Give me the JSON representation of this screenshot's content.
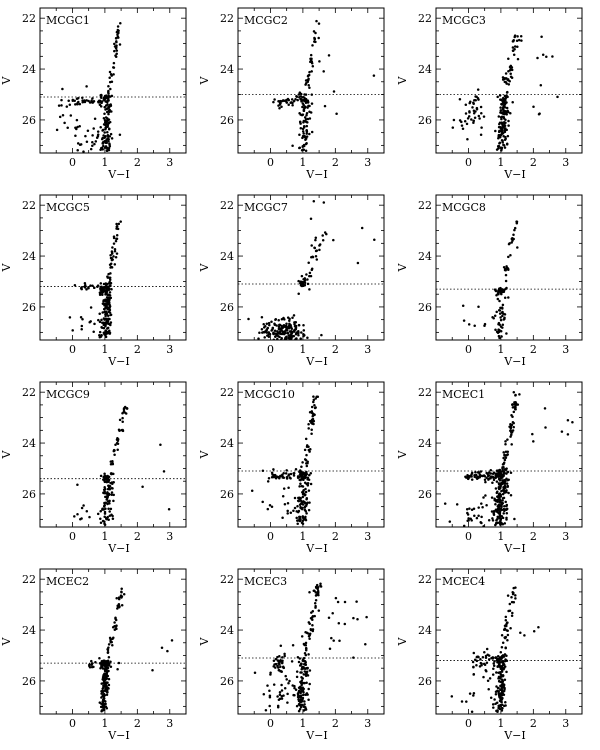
{
  "figure": {
    "layout": "4x3 grid of colour-magnitude diagrams",
    "point_color": "#000000",
    "line_color": "#000000"
  },
  "chart_data": [
    {
      "type": "scatter",
      "title": "MCGC1",
      "xlabel": "V−I",
      "ylabel": "V",
      "xlim": [
        -1,
        3.5
      ],
      "ylim": [
        27.3,
        21.6
      ],
      "y_inverted": true,
      "xticks": [
        0,
        1,
        2,
        3
      ],
      "yticks": [
        22,
        24,
        26
      ],
      "grid": false,
      "reference_line": {
        "y": 25.1,
        "style": "dotted"
      },
      "point_groups": [
        {
          "name": "rgb_upper",
          "n": 40,
          "x_top": 1.45,
          "x_bottom": 1.12,
          "y_top": 22.2,
          "y_bottom": 25.0,
          "sx": 0.04
        },
        {
          "name": "rgb_lower",
          "n": 90,
          "x_top": 1.12,
          "x_bottom": 1.0,
          "y_top": 25.0,
          "y_bottom": 27.2,
          "sx": 0.07
        },
        {
          "name": "rgb_clump",
          "n": 20,
          "cx": 1.0,
          "cy": 25.15,
          "sx": 0.08,
          "sy": 0.08
        },
        {
          "name": "hb_blue",
          "n": 35,
          "x_top": -0.1,
          "x_bottom": 0.9,
          "y_top": 25.3,
          "y_bottom": 25.3,
          "sx": 0.05,
          "sy": 0.07
        },
        {
          "name": "blue_scatter",
          "n": 25,
          "cx": 0.0,
          "cy": 26.0,
          "sx": 0.25,
          "sy": 0.6
        },
        {
          "name": "bottom_blob",
          "n": 30,
          "cx": 0.85,
          "cy": 26.9,
          "sx": 0.25,
          "sy": 0.2
        }
      ]
    },
    {
      "type": "scatter",
      "title": "MCGC2",
      "xlabel": "V−I",
      "ylabel": "V",
      "xlim": [
        -1,
        3.5
      ],
      "ylim": [
        27.3,
        21.6
      ],
      "y_inverted": true,
      "xticks": [
        0,
        1,
        2,
        3
      ],
      "yticks": [
        22,
        24,
        26
      ],
      "grid": false,
      "reference_line": {
        "y": 25.0,
        "style": "dotted"
      },
      "point_groups": [
        {
          "name": "rgb_upper",
          "n": 35,
          "x_top": 1.45,
          "x_bottom": 1.1,
          "y_top": 22.1,
          "y_bottom": 25.0,
          "sx": 0.05
        },
        {
          "name": "rgb_lower",
          "n": 80,
          "x_top": 1.1,
          "x_bottom": 1.0,
          "y_top": 25.0,
          "y_bottom": 27.2,
          "sx": 0.09
        },
        {
          "name": "rgb_clump",
          "n": 18,
          "cx": 0.98,
          "cy": 25.1,
          "sx": 0.08,
          "sy": 0.07
        },
        {
          "name": "hb_blue",
          "n": 30,
          "x_top": 0.1,
          "x_bottom": 0.8,
          "y_top": 25.3,
          "y_bottom": 25.3,
          "sx": 0.07,
          "sy": 0.12
        },
        {
          "name": "outliers",
          "n": 8,
          "cx": 1.8,
          "cy": 25.0,
          "sx": 0.7,
          "sy": 1.4
        }
      ]
    },
    {
      "type": "scatter",
      "title": "MCGC3",
      "xlabel": "V−I",
      "ylabel": "V",
      "xlim": [
        -1,
        3.5
      ],
      "ylim": [
        27.3,
        21.6
      ],
      "y_inverted": true,
      "xticks": [
        0,
        1,
        2,
        3
      ],
      "yticks": [
        22,
        24,
        26
      ],
      "grid": false,
      "reference_line": {
        "y": 25.0,
        "style": "dotted"
      },
      "point_groups": [
        {
          "name": "rgb_upper",
          "n": 45,
          "x_top": 1.55,
          "x_bottom": 1.12,
          "y_top": 22.4,
          "y_bottom": 25.0,
          "sx": 0.06
        },
        {
          "name": "rgb_lower",
          "n": 130,
          "x_top": 1.12,
          "x_bottom": 1.0,
          "y_top": 25.0,
          "y_bottom": 27.2,
          "sx": 0.09
        },
        {
          "name": "hb_blue",
          "n": 45,
          "cx": 0.1,
          "cy": 25.8,
          "sx": 0.2,
          "sy": 0.45
        },
        {
          "name": "outliers",
          "n": 10,
          "cx": 2.1,
          "cy": 24.3,
          "sx": 0.4,
          "sy": 1.0
        }
      ]
    },
    {
      "type": "scatter",
      "title": "MCGC5",
      "xlabel": "V−I",
      "ylabel": "V",
      "xlim": [
        -1,
        3.5
      ],
      "ylim": [
        27.3,
        21.6
      ],
      "y_inverted": true,
      "xticks": [
        0,
        1,
        2,
        3
      ],
      "yticks": [
        22,
        24,
        26
      ],
      "grid": false,
      "reference_line": {
        "y": 25.2,
        "style": "dotted"
      },
      "point_groups": [
        {
          "name": "rgb_upper",
          "n": 45,
          "x_top": 1.45,
          "x_bottom": 1.1,
          "y_top": 22.6,
          "y_bottom": 25.1,
          "sx": 0.05
        },
        {
          "name": "rgb_lower",
          "n": 140,
          "x_top": 1.1,
          "x_bottom": 1.0,
          "y_top": 25.1,
          "y_bottom": 27.2,
          "sx": 0.09
        },
        {
          "name": "rgb_clump",
          "n": 30,
          "cx": 0.95,
          "cy": 25.3,
          "sx": 0.1,
          "sy": 0.1
        },
        {
          "name": "hb_blue",
          "n": 15,
          "cx": 0.4,
          "cy": 25.2,
          "sx": 0.2,
          "sy": 0.1
        },
        {
          "name": "blue_scatter",
          "n": 12,
          "cx": 0.3,
          "cy": 26.6,
          "sx": 0.3,
          "sy": 0.4
        }
      ]
    },
    {
      "type": "scatter",
      "title": "MCGC7",
      "xlabel": "V−I",
      "ylabel": "V",
      "xlim": [
        -1,
        3.5
      ],
      "ylim": [
        27.3,
        21.6
      ],
      "y_inverted": true,
      "xticks": [
        0,
        1,
        2,
        3
      ],
      "yticks": [
        22,
        24,
        26
      ],
      "grid": false,
      "reference_line": {
        "y": 25.1,
        "style": "dotted"
      },
      "point_groups": [
        {
          "name": "rgb",
          "n": 30,
          "x_top": 1.55,
          "x_bottom": 1.0,
          "y_top": 23.0,
          "y_bottom": 25.5,
          "sx": 0.1
        },
        {
          "name": "rgb_clump",
          "n": 20,
          "cx": 1.0,
          "cy": 25.0,
          "sx": 0.05,
          "sy": 0.1
        },
        {
          "name": "main_sequence",
          "n": 190,
          "cx": 0.45,
          "cy": 27.0,
          "sx": 0.35,
          "sy": 0.25
        },
        {
          "name": "outliers",
          "n": 12,
          "cx": 2.0,
          "cy": 23.5,
          "sx": 0.8,
          "sy": 0.9
        }
      ]
    },
    {
      "type": "scatter",
      "title": "MCGC8",
      "xlabel": "V−I",
      "ylabel": "V",
      "xlim": [
        -1,
        3.5
      ],
      "ylim": [
        27.3,
        21.6
      ],
      "y_inverted": true,
      "xticks": [
        0,
        1,
        2,
        3
      ],
      "yticks": [
        22,
        24,
        26
      ],
      "grid": false,
      "reference_line": {
        "y": 25.3,
        "style": "dotted"
      },
      "point_groups": [
        {
          "name": "rgb_upper",
          "n": 30,
          "x_top": 1.5,
          "x_bottom": 1.05,
          "y_top": 22.5,
          "y_bottom": 25.2,
          "sx": 0.05
        },
        {
          "name": "rgb_lower",
          "n": 50,
          "x_top": 1.05,
          "x_bottom": 0.95,
          "y_top": 25.2,
          "y_bottom": 27.2,
          "sx": 0.08
        },
        {
          "name": "rgb_clump",
          "n": 20,
          "cx": 0.95,
          "cy": 25.35,
          "sx": 0.08,
          "sy": 0.08
        },
        {
          "name": "blue_scatter",
          "n": 8,
          "cx": 0.3,
          "cy": 26.5,
          "sx": 0.3,
          "sy": 0.6
        }
      ]
    },
    {
      "type": "scatter",
      "title": "MCGC9",
      "xlabel": "V−I",
      "ylabel": "V",
      "xlim": [
        -1,
        3.5
      ],
      "ylim": [
        27.3,
        21.6
      ],
      "y_inverted": true,
      "xticks": [
        0,
        1,
        2,
        3
      ],
      "yticks": [
        22,
        24,
        26
      ],
      "grid": false,
      "reference_line": {
        "y": 25.4,
        "style": "dotted"
      },
      "point_groups": [
        {
          "name": "rgb_upper",
          "n": 35,
          "x_top": 1.65,
          "x_bottom": 1.15,
          "y_top": 22.5,
          "y_bottom": 25.2,
          "sx": 0.05
        },
        {
          "name": "rgb_lower",
          "n": 90,
          "x_top": 1.15,
          "x_bottom": 1.0,
          "y_top": 25.2,
          "y_bottom": 27.2,
          "sx": 0.08
        },
        {
          "name": "rgb_clump",
          "n": 20,
          "cx": 1.05,
          "cy": 25.4,
          "sx": 0.08,
          "sy": 0.08
        },
        {
          "name": "blue_scatter",
          "n": 12,
          "cx": 0.4,
          "cy": 26.8,
          "sx": 0.4,
          "sy": 0.4
        },
        {
          "name": "outliers",
          "n": 5,
          "cx": 2.6,
          "cy": 25.0,
          "sx": 0.5,
          "sy": 0.9
        }
      ]
    },
    {
      "type": "scatter",
      "title": "MCGC10",
      "xlabel": "V−I",
      "ylabel": "V",
      "xlim": [
        -1,
        3.5
      ],
      "ylim": [
        27.3,
        21.6
      ],
      "y_inverted": true,
      "xticks": [
        0,
        1,
        2,
        3
      ],
      "yticks": [
        22,
        24,
        26
      ],
      "grid": false,
      "reference_line": {
        "y": 25.1,
        "style": "dotted"
      },
      "point_groups": [
        {
          "name": "rgb_upper",
          "n": 50,
          "x_top": 1.4,
          "x_bottom": 1.05,
          "y_top": 22.0,
          "y_bottom": 25.1,
          "sx": 0.05
        },
        {
          "name": "rgb_lower",
          "n": 110,
          "x_top": 1.05,
          "x_bottom": 0.95,
          "y_top": 25.1,
          "y_bottom": 27.2,
          "sx": 0.09
        },
        {
          "name": "rgb_clump",
          "n": 20,
          "cx": 0.95,
          "cy": 25.2,
          "sx": 0.08,
          "sy": 0.08
        },
        {
          "name": "hb_blue",
          "n": 35,
          "x_top": 0.0,
          "x_bottom": 0.8,
          "y_top": 25.3,
          "y_bottom": 25.3,
          "sx": 0.05,
          "sy": 0.1
        },
        {
          "name": "blue_scatter",
          "n": 20,
          "cx": 0.3,
          "cy": 26.4,
          "sx": 0.45,
          "sy": 0.5
        }
      ]
    },
    {
      "type": "scatter",
      "title": "MCEC1",
      "xlabel": "V−I",
      "ylabel": "V",
      "xlim": [
        -1,
        3.5
      ],
      "ylim": [
        27.3,
        21.6
      ],
      "y_inverted": true,
      "xticks": [
        0,
        1,
        2,
        3
      ],
      "yticks": [
        22,
        24,
        26
      ],
      "grid": false,
      "reference_line": {
        "y": 25.1,
        "style": "dotted"
      },
      "point_groups": [
        {
          "name": "rgb_upper",
          "n": 60,
          "x_top": 1.5,
          "x_bottom": 1.1,
          "y_top": 22.0,
          "y_bottom": 25.0,
          "sx": 0.05
        },
        {
          "name": "rgb_lower",
          "n": 170,
          "x_top": 1.1,
          "x_bottom": 0.95,
          "y_top": 25.0,
          "y_bottom": 27.2,
          "sx": 0.11
        },
        {
          "name": "rgb_clump",
          "n": 30,
          "cx": 0.95,
          "cy": 25.2,
          "sx": 0.08,
          "sy": 0.08
        },
        {
          "name": "hb_blue",
          "n": 60,
          "x_top": -0.1,
          "x_bottom": 0.85,
          "y_top": 25.3,
          "y_bottom": 25.3,
          "sx": 0.05,
          "sy": 0.1
        },
        {
          "name": "blue_scatter",
          "n": 40,
          "cx": 0.3,
          "cy": 26.8,
          "sx": 0.4,
          "sy": 0.35
        },
        {
          "name": "outliers",
          "n": 8,
          "cx": 2.3,
          "cy": 23.4,
          "sx": 0.5,
          "sy": 0.6
        }
      ]
    },
    {
      "type": "scatter",
      "title": "MCEC2",
      "xlabel": "V−I",
      "ylabel": "V",
      "xlim": [
        -1,
        3.5
      ],
      "ylim": [
        27.3,
        21.6
      ],
      "y_inverted": true,
      "xticks": [
        0,
        1,
        2,
        3
      ],
      "yticks": [
        22,
        24,
        26
      ],
      "grid": false,
      "reference_line": {
        "y": 25.3,
        "style": "dotted"
      },
      "point_groups": [
        {
          "name": "rgb_upper",
          "n": 45,
          "x_top": 1.55,
          "x_bottom": 1.05,
          "y_top": 22.3,
          "y_bottom": 25.2,
          "sx": 0.05
        },
        {
          "name": "rgb_lower",
          "n": 140,
          "x_top": 1.05,
          "x_bottom": 0.95,
          "y_top": 25.2,
          "y_bottom": 27.2,
          "sx": 0.07
        },
        {
          "name": "rgb_clump",
          "n": 25,
          "cx": 0.95,
          "cy": 25.35,
          "sx": 0.07,
          "sy": 0.07
        },
        {
          "name": "hb_blue",
          "n": 12,
          "cx": 0.7,
          "cy": 25.3,
          "sx": 0.1,
          "sy": 0.08
        },
        {
          "name": "outliers",
          "n": 6,
          "cx": 2.3,
          "cy": 24.8,
          "sx": 0.5,
          "sy": 0.8
        }
      ]
    },
    {
      "type": "scatter",
      "title": "MCEC3",
      "xlabel": "V−I",
      "ylabel": "V",
      "xlim": [
        -1,
        3.5
      ],
      "ylim": [
        27.3,
        21.6
      ],
      "y_inverted": true,
      "xticks": [
        0,
        1,
        2,
        3
      ],
      "yticks": [
        22,
        24,
        26
      ],
      "grid": false,
      "reference_line": {
        "y": 25.1,
        "style": "dotted"
      },
      "point_groups": [
        {
          "name": "rgb_upper",
          "n": 55,
          "x_top": 1.5,
          "x_bottom": 1.05,
          "y_top": 22.1,
          "y_bottom": 25.0,
          "sx": 0.07
        },
        {
          "name": "rgb_lower",
          "n": 110,
          "x_top": 1.05,
          "x_bottom": 0.95,
          "y_top": 25.0,
          "y_bottom": 27.2,
          "sx": 0.09
        },
        {
          "name": "hb_blue",
          "n": 30,
          "cx": 0.25,
          "cy": 25.3,
          "sx": 0.12,
          "sy": 0.18
        },
        {
          "name": "blue_scatter",
          "n": 50,
          "cx": 0.4,
          "cy": 26.3,
          "sx": 0.35,
          "sy": 0.6
        },
        {
          "name": "outliers",
          "n": 20,
          "cx": 2.2,
          "cy": 23.6,
          "sx": 0.5,
          "sy": 0.6
        }
      ]
    },
    {
      "type": "scatter",
      "title": "MCEC4",
      "xlabel": "V−I",
      "ylabel": "V",
      "xlim": [
        -1,
        3.5
      ],
      "ylim": [
        27.3,
        21.6
      ],
      "y_inverted": true,
      "xticks": [
        0,
        1,
        2,
        3
      ],
      "yticks": [
        22,
        24,
        26
      ],
      "grid": false,
      "reference_line": {
        "y": 25.2,
        "style": "dotted"
      },
      "point_groups": [
        {
          "name": "rgb_upper",
          "n": 40,
          "x_top": 1.4,
          "x_bottom": 1.05,
          "y_top": 22.3,
          "y_bottom": 25.0,
          "sx": 0.05
        },
        {
          "name": "rgb_lower",
          "n": 130,
          "x_top": 1.05,
          "x_bottom": 0.95,
          "y_top": 25.0,
          "y_bottom": 27.2,
          "sx": 0.08
        },
        {
          "name": "rgb_clump",
          "n": 20,
          "cx": 0.9,
          "cy": 25.1,
          "sx": 0.1,
          "sy": 0.1
        },
        {
          "name": "hb_blue",
          "n": 35,
          "x_top": 0.1,
          "x_bottom": 0.8,
          "y_top": 25.2,
          "y_bottom": 25.2,
          "sx": 0.05,
          "sy": 0.25
        },
        {
          "name": "blue_scatter",
          "n": 15,
          "cx": 0.4,
          "cy": 26.3,
          "sx": 0.3,
          "sy": 0.5
        },
        {
          "name": "outliers",
          "n": 4,
          "cx": 1.9,
          "cy": 23.6,
          "sx": 0.3,
          "sy": 0.3
        }
      ]
    }
  ]
}
